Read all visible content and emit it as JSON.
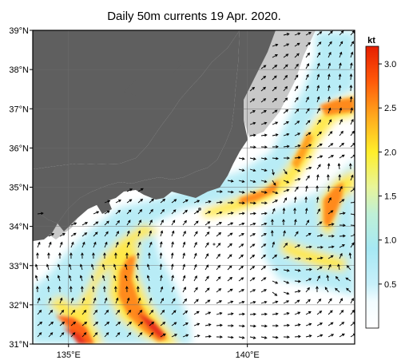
{
  "title": "Daily 50m currents 19 Apr. 2020.",
  "map": {
    "lat_range": [
      31,
      39
    ],
    "lon_range": [
      134.0,
      143.0
    ],
    "lat_ticks": [
      {
        "value": 39,
        "label": "39°N"
      },
      {
        "value": 38,
        "label": "38°N"
      },
      {
        "value": 37,
        "label": "37°N"
      },
      {
        "value": 36,
        "label": "36°N"
      },
      {
        "value": 35,
        "label": "35°N"
      },
      {
        "value": 34,
        "label": "34°N"
      },
      {
        "value": 33,
        "label": "33°N"
      },
      {
        "value": 32,
        "label": "32°N"
      },
      {
        "value": 31,
        "label": "31°N"
      }
    ],
    "lon_ticks": [
      {
        "value": 135,
        "label": "135°E"
      },
      {
        "value": 140,
        "label": "140°E"
      }
    ],
    "grid": true,
    "colors": {
      "land": "#5f5f5f",
      "shelf": "#c8c8c8",
      "ocean": "#ffffff",
      "arrow": "#000000"
    }
  },
  "colorbar": {
    "unit": "kt",
    "range": [
      0,
      3.2
    ],
    "ticks": [
      {
        "value": 0.5,
        "label": "0.5"
      },
      {
        "value": 1.0,
        "label": "1.0"
      },
      {
        "value": 1.5,
        "label": "1.5"
      },
      {
        "value": 2.0,
        "label": "2.0"
      },
      {
        "value": 2.5,
        "label": "2.5"
      },
      {
        "value": 3.0,
        "label": "3.0"
      }
    ],
    "stops": [
      {
        "value": 0.0,
        "color": "#ffffff"
      },
      {
        "value": 0.3,
        "color": "#f2fcff"
      },
      {
        "value": 0.5,
        "color": "#c8f0fa"
      },
      {
        "value": 0.9,
        "color": "#a6e8f4"
      },
      {
        "value": 1.3,
        "color": "#bff0d6"
      },
      {
        "value": 1.6,
        "color": "#e8f59a"
      },
      {
        "value": 2.0,
        "color": "#ffee2a"
      },
      {
        "value": 2.4,
        "color": "#ffaa1e"
      },
      {
        "value": 2.8,
        "color": "#ff5a0a"
      },
      {
        "value": 3.2,
        "color": "#e61e00"
      }
    ]
  }
}
